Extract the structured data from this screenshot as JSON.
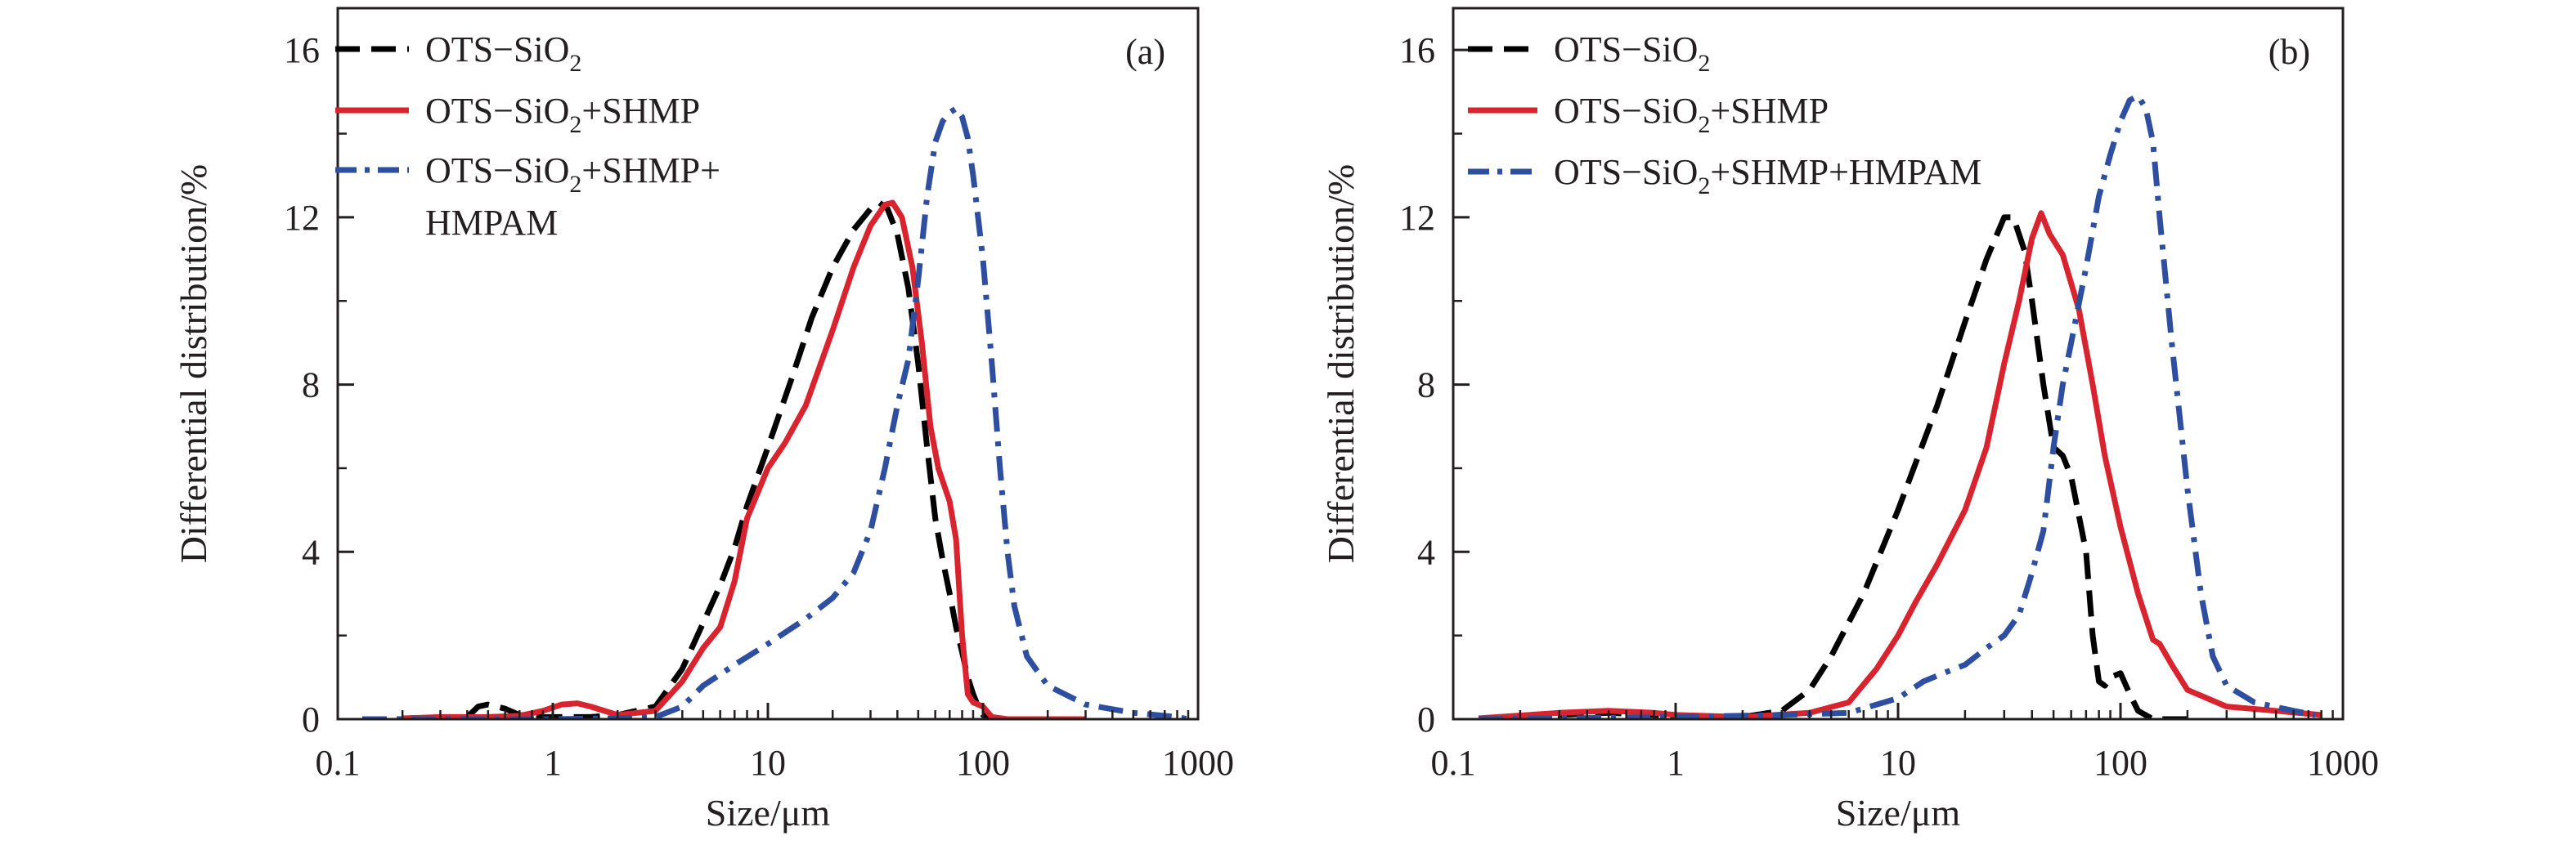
{
  "chart_data": [
    {
      "type": "line",
      "panel_label": "(a)",
      "xlabel": "Size/μm",
      "ylabel": "Differential distribution/%",
      "x_scale": "log",
      "xlim": [
        0.1,
        1000
      ],
      "ylim": [
        0,
        17
      ],
      "xticks": [
        0.1,
        1,
        10,
        100,
        1000
      ],
      "xtick_labels": [
        "0.1",
        "1",
        "10",
        "100",
        "1000"
      ],
      "yticks": [
        0,
        4,
        8,
        12,
        16
      ],
      "ytick_labels": [
        "0",
        "4",
        "8",
        "12",
        "16"
      ],
      "grid": false,
      "legend_position": "top-left",
      "series": [
        {
          "name": "OTS−SiO2",
          "legend_label": {
            "main": "OTS−SiO",
            "sub": "2",
            "rest": ""
          },
          "color": "#000000",
          "style": "dashed",
          "points": [
            [
              0.4,
              0.05
            ],
            [
              0.45,
              0.3
            ],
            [
              0.5,
              0.35
            ],
            [
              0.6,
              0.25
            ],
            [
              0.7,
              0.1
            ],
            [
              0.9,
              0.05
            ],
            [
              1.5,
              0.05
            ],
            [
              2,
              0.1
            ],
            [
              3,
              0.3
            ],
            [
              4,
              1.2
            ],
            [
              5,
              2.3
            ],
            [
              6,
              3.2
            ],
            [
              7,
              4.1
            ],
            [
              8,
              5.1
            ],
            [
              10,
              6.5
            ],
            [
              13,
              8.2
            ],
            [
              16,
              9.6
            ],
            [
              20,
              10.8
            ],
            [
              25,
              11.7
            ],
            [
              30,
              12.2
            ],
            [
              33,
              12.35
            ],
            [
              36,
              12.2
            ],
            [
              40,
              11.6
            ],
            [
              45,
              10.3
            ],
            [
              50,
              8.5
            ],
            [
              55,
              6.5
            ],
            [
              60,
              4.8
            ],
            [
              65,
              3.8
            ],
            [
              70,
              3.0
            ],
            [
              75,
              2.2
            ],
            [
              80,
              1.6
            ],
            [
              85,
              1.0
            ],
            [
              90,
              0.6
            ],
            [
              95,
              0.3
            ],
            [
              100,
              0.1
            ],
            [
              110,
              0.05
            ],
            [
              120,
              0
            ]
          ]
        },
        {
          "name": "OTS−SiO2+SHMP",
          "legend_label": {
            "main": "OTS−SiO",
            "sub": "2",
            "rest": "+SHMP"
          },
          "color": "#d7242f",
          "style": "solid",
          "points": [
            [
              0.2,
              0.02
            ],
            [
              0.3,
              0.05
            ],
            [
              0.5,
              0.05
            ],
            [
              0.7,
              0.08
            ],
            [
              0.9,
              0.2
            ],
            [
              1.1,
              0.35
            ],
            [
              1.3,
              0.38
            ],
            [
              1.5,
              0.3
            ],
            [
              2,
              0.1
            ],
            [
              3,
              0.2
            ],
            [
              4,
              0.9
            ],
            [
              5,
              1.7
            ],
            [
              6,
              2.2
            ],
            [
              7,
              3.3
            ],
            [
              8,
              4.8
            ],
            [
              10,
              6.0
            ],
            [
              12,
              6.6
            ],
            [
              15,
              7.5
            ],
            [
              20,
              9.3
            ],
            [
              25,
              10.8
            ],
            [
              30,
              11.8
            ],
            [
              35,
              12.3
            ],
            [
              38,
              12.35
            ],
            [
              42,
              12.0
            ],
            [
              47,
              10.8
            ],
            [
              52,
              9.0
            ],
            [
              57,
              7.0
            ],
            [
              62,
              6.0
            ],
            [
              70,
              5.2
            ],
            [
              75,
              4.3
            ],
            [
              80,
              2.0
            ],
            [
              85,
              0.6
            ],
            [
              90,
              0.4
            ],
            [
              100,
              0.3
            ],
            [
              110,
              0.05
            ],
            [
              130,
              0
            ],
            [
              300,
              0
            ]
          ]
        },
        {
          "name": "OTS−SiO2+SHMP+HMPAM",
          "legend_label": {
            "main": "OTS−SiO",
            "sub": "2",
            "rest": "+SHMP+",
            "line2": "HMPAM"
          },
          "color": "#2e4f9f",
          "style": "dash-dot",
          "points": [
            [
              0.13,
              0
            ],
            [
              1,
              0
            ],
            [
              2,
              0.02
            ],
            [
              3,
              0.05
            ],
            [
              4,
              0.3
            ],
            [
              5,
              0.8
            ],
            [
              7,
              1.3
            ],
            [
              10,
              1.8
            ],
            [
              15,
              2.4
            ],
            [
              20,
              2.9
            ],
            [
              25,
              3.5
            ],
            [
              30,
              4.5
            ],
            [
              35,
              6.0
            ],
            [
              40,
              7.5
            ],
            [
              45,
              8.6
            ],
            [
              50,
              10.5
            ],
            [
              55,
              12.5
            ],
            [
              60,
              13.8
            ],
            [
              65,
              14.3
            ],
            [
              70,
              14.5
            ],
            [
              75,
              14.6
            ],
            [
              80,
              14.4
            ],
            [
              85,
              13.9
            ],
            [
              90,
              13.0
            ],
            [
              100,
              11.0
            ],
            [
              110,
              8.5
            ],
            [
              120,
              6.0
            ],
            [
              130,
              4.0
            ],
            [
              140,
              2.7
            ],
            [
              160,
              1.5
            ],
            [
              200,
              0.8
            ],
            [
              300,
              0.35
            ],
            [
              500,
              0.15
            ],
            [
              800,
              0.05
            ],
            [
              900,
              0
            ]
          ]
        }
      ]
    },
    {
      "type": "line",
      "panel_label": "(b)",
      "xlabel": "Size/μm",
      "ylabel": "Differential distribution/%",
      "x_scale": "log",
      "xlim": [
        0.1,
        1000
      ],
      "ylim": [
        0,
        17
      ],
      "xticks": [
        0.1,
        1,
        10,
        100,
        1000
      ],
      "xtick_labels": [
        "0.1",
        "1",
        "10",
        "100",
        "1000"
      ],
      "yticks": [
        0,
        4,
        8,
        12,
        16
      ],
      "ytick_labels": [
        "0",
        "4",
        "8",
        "12",
        "16"
      ],
      "grid": false,
      "legend_position": "top-left",
      "series": [
        {
          "name": "OTS−SiO2",
          "legend_label": {
            "main": "OTS−SiO",
            "sub": "2",
            "rest": ""
          },
          "color": "#000000",
          "style": "dashed",
          "points": [
            [
              0.2,
              0.03
            ],
            [
              0.3,
              0.1
            ],
            [
              0.5,
              0.15
            ],
            [
              0.8,
              0.1
            ],
            [
              1,
              0.05
            ],
            [
              2,
              0.05
            ],
            [
              3,
              0.2
            ],
            [
              4,
              0.7
            ],
            [
              5,
              1.5
            ],
            [
              7,
              3.0
            ],
            [
              10,
              5.0
            ],
            [
              15,
              7.5
            ],
            [
              20,
              9.5
            ],
            [
              25,
              11.0
            ],
            [
              30,
              12.0
            ],
            [
              33,
              12.0
            ],
            [
              37,
              11.2
            ],
            [
              40,
              10.0
            ],
            [
              45,
              8.0
            ],
            [
              50,
              6.5
            ],
            [
              55,
              6.3
            ],
            [
              60,
              5.8
            ],
            [
              70,
              4.0
            ],
            [
              75,
              2.0
            ],
            [
              80,
              0.9
            ],
            [
              85,
              0.8
            ],
            [
              90,
              1.0
            ],
            [
              100,
              1.1
            ],
            [
              110,
              0.6
            ],
            [
              120,
              0.2
            ],
            [
              140,
              0
            ],
            [
              200,
              0
            ]
          ]
        },
        {
          "name": "OTS−SiO2+SHMP",
          "legend_label": {
            "main": "OTS−SiO",
            "sub": "2",
            "rest": "+SHMP"
          },
          "color": "#d7242f",
          "style": "solid",
          "points": [
            [
              0.13,
              0.02
            ],
            [
              0.3,
              0.15
            ],
            [
              0.5,
              0.2
            ],
            [
              0.8,
              0.15
            ],
            [
              1,
              0.1
            ],
            [
              2,
              0.05
            ],
            [
              4,
              0.15
            ],
            [
              6,
              0.4
            ],
            [
              8,
              1.2
            ],
            [
              10,
              2.0
            ],
            [
              12,
              2.8
            ],
            [
              15,
              3.7
            ],
            [
              20,
              5.0
            ],
            [
              25,
              6.5
            ],
            [
              30,
              8.5
            ],
            [
              35,
              10.0
            ],
            [
              40,
              11.5
            ],
            [
              44,
              12.1
            ],
            [
              48,
              11.6
            ],
            [
              55,
              11.1
            ],
            [
              65,
              9.8
            ],
            [
              75,
              8.0
            ],
            [
              85,
              6.3
            ],
            [
              100,
              4.6
            ],
            [
              120,
              3.0
            ],
            [
              140,
              1.9
            ],
            [
              150,
              1.8
            ],
            [
              170,
              1.3
            ],
            [
              200,
              0.7
            ],
            [
              300,
              0.3
            ],
            [
              500,
              0.2
            ],
            [
              800,
              0.1
            ]
          ]
        },
        {
          "name": "OTS−SiO2+SHMP+HMPAM",
          "legend_label": {
            "main": "OTS−SiO",
            "sub": "2",
            "rest": "+SHMP+HMPAM"
          },
          "color": "#2e4f9f",
          "style": "dash-dot",
          "points": [
            [
              0.13,
              0
            ],
            [
              1,
              0.05
            ],
            [
              3,
              0.1
            ],
            [
              6,
              0.15
            ],
            [
              10,
              0.5
            ],
            [
              13,
              0.9
            ],
            [
              16,
              1.1
            ],
            [
              20,
              1.3
            ],
            [
              25,
              1.7
            ],
            [
              30,
              2.0
            ],
            [
              35,
              2.5
            ],
            [
              40,
              3.5
            ],
            [
              45,
              4.5
            ],
            [
              50,
              6.5
            ],
            [
              55,
              8.0
            ],
            [
              60,
              9.0
            ],
            [
              70,
              10.8
            ],
            [
              80,
              12.5
            ],
            [
              90,
              13.5
            ],
            [
              100,
              14.3
            ],
            [
              110,
              14.8
            ],
            [
              120,
              14.9
            ],
            [
              130,
              14.6
            ],
            [
              140,
              13.8
            ],
            [
              150,
              12.0
            ],
            [
              170,
              9.0
            ],
            [
              200,
              5.5
            ],
            [
              230,
              3.0
            ],
            [
              260,
              1.5
            ],
            [
              300,
              0.8
            ],
            [
              400,
              0.4
            ],
            [
              600,
              0.2
            ],
            [
              750,
              0.1
            ]
          ]
        }
      ]
    }
  ]
}
